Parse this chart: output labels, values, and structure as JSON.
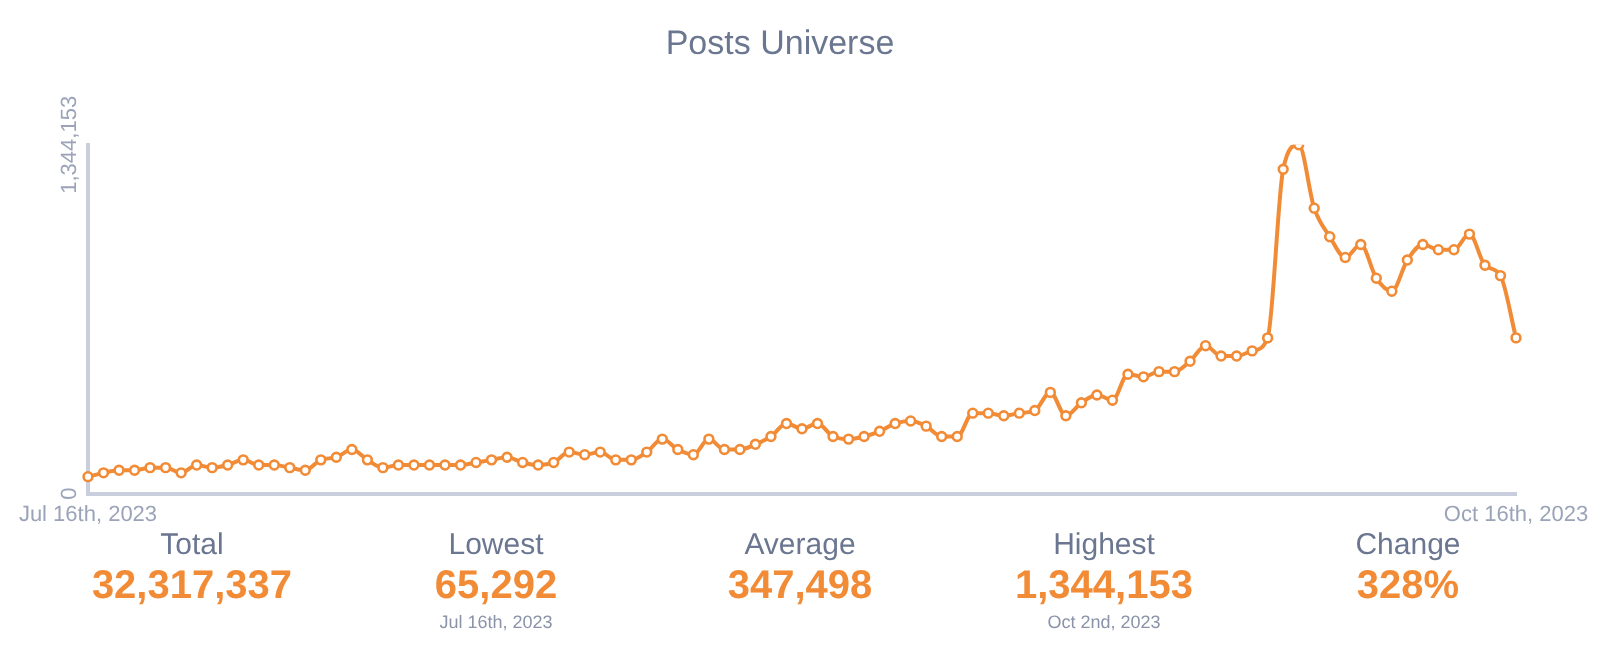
{
  "chart_data": {
    "type": "line",
    "title": "Posts Universe",
    "categories": [
      "Jul 16th, 2023",
      null,
      null,
      null,
      null,
      null,
      null,
      null,
      null,
      null,
      null,
      null,
      null,
      null,
      null,
      null,
      null,
      null,
      null,
      null,
      null,
      null,
      null,
      null,
      null,
      null,
      null,
      null,
      null,
      null,
      null,
      null,
      null,
      null,
      null,
      null,
      null,
      null,
      null,
      null,
      null,
      null,
      null,
      null,
      null,
      null,
      null,
      null,
      null,
      null,
      null,
      null,
      null,
      null,
      null,
      null,
      null,
      null,
      null,
      null,
      null,
      null,
      null,
      null,
      null,
      null,
      null,
      null,
      null,
      null,
      null,
      null,
      null,
      null,
      null,
      null,
      null,
      null,
      null,
      null,
      null,
      null,
      null,
      null,
      null,
      null,
      null,
      null,
      null,
      null,
      null,
      null,
      "Oct 16th, 2023"
    ],
    "series": [
      {
        "color": "#f28b36",
        "values": [
          65292,
          80000,
          90000,
          90000,
          100000,
          100000,
          80000,
          110000,
          100000,
          110000,
          130000,
          110000,
          110000,
          100000,
          90000,
          130000,
          140000,
          170000,
          130000,
          100000,
          110000,
          110000,
          110000,
          110000,
          110000,
          120000,
          130000,
          140000,
          120000,
          110000,
          120000,
          160000,
          150000,
          160000,
          130000,
          130000,
          160000,
          210000,
          170000,
          150000,
          210000,
          170000,
          170000,
          190000,
          220000,
          270000,
          250000,
          270000,
          220000,
          210000,
          220000,
          240000,
          270000,
          280000,
          260000,
          220000,
          220000,
          310000,
          310000,
          300000,
          310000,
          320000,
          390000,
          300000,
          350000,
          380000,
          360000,
          460000,
          450000,
          470000,
          470000,
          510000,
          570000,
          530000,
          530000,
          550000,
          600000,
          1250000,
          1344153,
          1100000,
          990000,
          910000,
          960000,
          830000,
          780000,
          900000,
          960000,
          940000,
          940000,
          1000000,
          880000,
          840000,
          600000
        ]
      }
    ],
    "ylim": [
      0,
      1344153
    ],
    "yticks": [
      0,
      {
        "value": 1344153,
        "label": "1,344,153"
      }
    ],
    "grid": false,
    "legend": false,
    "marker": "circle",
    "line_style": "solid",
    "annotations": [
      "Total",
      "32,317,337",
      "Lowest",
      "65,292",
      "Jul 16th, 2023",
      "Average",
      "347,498",
      "Highest",
      "1,344,153",
      "Oct 2nd, 2023",
      "Change",
      "328%"
    ]
  }
}
